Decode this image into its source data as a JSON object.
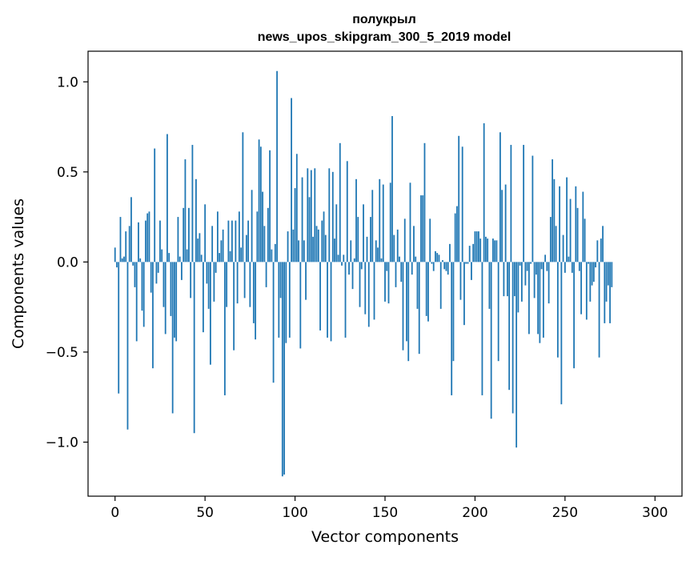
{
  "chart_data": {
    "type": "bar",
    "title": "полукрыл",
    "subtitle": "news_upos_skipgram_300_5_2019 model",
    "xlabel": "Vector components",
    "ylabel": "Components values",
    "xlim": [
      -15,
      315
    ],
    "ylim": [
      -1.3,
      1.17
    ],
    "x_ticks": [
      0,
      50,
      100,
      150,
      200,
      250,
      300
    ],
    "y_ticks": [
      -1.0,
      -0.5,
      0.0,
      0.5,
      1.0
    ],
    "x_tick_labels": [
      "0",
      "50",
      "100",
      "150",
      "200",
      "250",
      "300"
    ],
    "y_tick_labels": [
      "−1.0",
      "−0.5",
      "0.0",
      "0.5",
      "1.0"
    ],
    "grid": false,
    "bar_color": "#1f77b4",
    "values": [
      0.08,
      -0.03,
      -0.73,
      0.25,
      0.02,
      0.03,
      0.17,
      -0.93,
      0.2,
      0.36,
      -0.02,
      -0.14,
      -0.44,
      0.22,
      0.02,
      -0.27,
      -0.36,
      0.23,
      0.27,
      0.28,
      -0.17,
      -0.59,
      0.63,
      -0.12,
      -0.06,
      0.23,
      0.07,
      -0.25,
      -0.4,
      0.71,
      0.05,
      -0.3,
      -0.84,
      -0.42,
      -0.44,
      0.25,
      0.03,
      -0.1,
      0.3,
      0.57,
      0.07,
      0.3,
      -0.2,
      0.65,
      -0.95,
      0.46,
      0.13,
      0.16,
      0.04,
      -0.39,
      0.32,
      -0.12,
      -0.26,
      -0.57,
      0.2,
      -0.22,
      -0.06,
      0.28,
      0.05,
      0.12,
      0.18,
      -0.74,
      -0.25,
      0.23,
      0.06,
      0.23,
      -0.49,
      0.23,
      -0.23,
      0.28,
      0.08,
      0.72,
      -0.2,
      0.15,
      0.23,
      -0.25,
      0.4,
      -0.34,
      -0.43,
      0.28,
      0.68,
      0.64,
      0.39,
      0.2,
      -0.14,
      0.3,
      0.62,
      0.07,
      -0.67,
      0.1,
      1.06,
      -0.42,
      -0.2,
      -1.19,
      -1.18,
      -0.45,
      0.17,
      -0.42,
      0.91,
      0.18,
      0.41,
      0.6,
      0.12,
      -0.48,
      0.47,
      0.12,
      -0.21,
      0.52,
      0.36,
      0.51,
      0.14,
      0.52,
      0.2,
      0.18,
      -0.38,
      0.23,
      0.28,
      0.15,
      -0.42,
      0.52,
      -0.44,
      0.5,
      0.13,
      0.32,
      0.04,
      0.66,
      -0.02,
      0.04,
      -0.42,
      0.56,
      -0.07,
      0.12,
      -0.15,
      0.02,
      0.46,
      0.25,
      -0.25,
      -0.04,
      0.32,
      -0.29,
      0.14,
      -0.36,
      0.25,
      0.4,
      -0.32,
      0.12,
      0.08,
      0.46,
      0.02,
      0.43,
      -0.22,
      -0.05,
      -0.23,
      0.44,
      0.81,
      0.15,
      -0.14,
      0.18,
      0.03,
      -0.11,
      -0.49,
      0.24,
      -0.44,
      -0.55,
      0.44,
      -0.07,
      0.2,
      0.03,
      -0.26,
      -0.51,
      0.37,
      0.37,
      0.66,
      -0.3,
      -0.33,
      0.24,
      -0.01,
      -0.05,
      0.06,
      0.05,
      0.04,
      -0.26,
      0.01,
      -0.04,
      -0.05,
      -0.07,
      0.1,
      -0.74,
      -0.55,
      0.27,
      0.31,
      0.7,
      -0.21,
      0.64,
      -0.35,
      -0.01,
      -0.01,
      0.09,
      -0.1,
      0.1,
      0.17,
      0.17,
      0.17,
      0.13,
      -0.74,
      0.77,
      0.14,
      0.13,
      -0.26,
      -0.87,
      0.13,
      0.12,
      0.12,
      -0.55,
      0.72,
      0.4,
      -0.19,
      0.43,
      -0.19,
      -0.71,
      0.65,
      -0.84,
      -0.19,
      -1.03,
      -0.28,
      -0.02,
      -0.22,
      0.65,
      -0.13,
      -0.05,
      -0.4,
      -0.01,
      0.59,
      -0.2,
      -0.07,
      -0.4,
      -0.45,
      -0.04,
      -0.42,
      0.04,
      -0.05,
      -0.23,
      0.25,
      0.57,
      0.46,
      0.2,
      -0.53,
      0.42,
      -0.79,
      0.15,
      -0.06,
      0.47,
      0.03,
      0.35,
      -0.06,
      -0.59,
      0.42,
      0.3,
      -0.05,
      -0.29,
      0.39,
      0.24,
      -0.32,
      -0.01,
      -0.22,
      -0.13,
      -0.11,
      -0.03,
      0.12,
      -0.53,
      0.13,
      0.2,
      -0.34,
      -0.22,
      -0.13,
      -0.34,
      -0.14
    ],
    "series": [
      {
        "values_ref": "values"
      }
    ]
  }
}
